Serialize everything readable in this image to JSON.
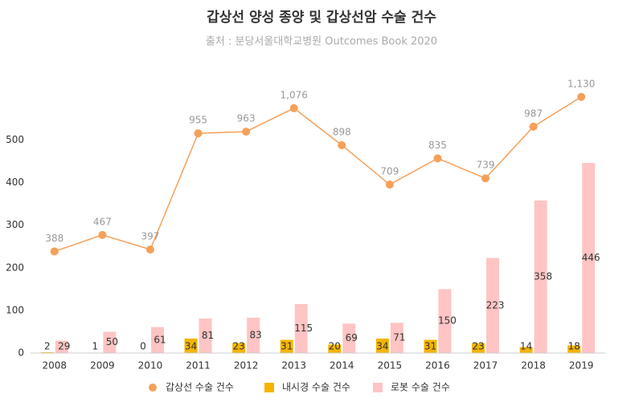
{
  "chart_data": {
    "type": "bar",
    "title": "갑상선 양성 종양 및 갑상선암 수술 건수",
    "subtitle": "출처 : 분당서울대학교병원 Outcomes Book 2020",
    "categories": [
      "2008",
      "2009",
      "2010",
      "2011",
      "2012",
      "2013",
      "2014",
      "2015",
      "2016",
      "2017",
      "2018",
      "2019"
    ],
    "series": [
      {
        "name": "갑상선 수술 건수",
        "type": "line",
        "axis": "y2",
        "color": "#f5a05a",
        "values": [
          388,
          467,
          397,
          955,
          963,
          1076,
          898,
          709,
          835,
          739,
          987,
          1130
        ],
        "value_labels": [
          "388",
          "467",
          "397",
          "955",
          "963",
          "1,076",
          "898",
          "709",
          "835",
          "739",
          "987",
          "1,130"
        ]
      },
      {
        "name": "내시경 수술 건수",
        "type": "bar",
        "color": "#f5b400",
        "values": [
          2,
          1,
          0,
          34,
          23,
          31,
          20,
          34,
          31,
          23,
          14,
          18
        ]
      },
      {
        "name": "로봇 수술 건수",
        "type": "bar",
        "color": "#ffc4c4",
        "values": [
          29,
          50,
          61,
          81,
          83,
          115,
          69,
          71,
          150,
          223,
          358,
          446
        ]
      }
    ],
    "ylim": [
      0,
      640
    ],
    "yticks": [
      0,
      100,
      200,
      300,
      400,
      500
    ],
    "y2lim": [
      -100,
      1210
    ],
    "legend": "bottom"
  }
}
